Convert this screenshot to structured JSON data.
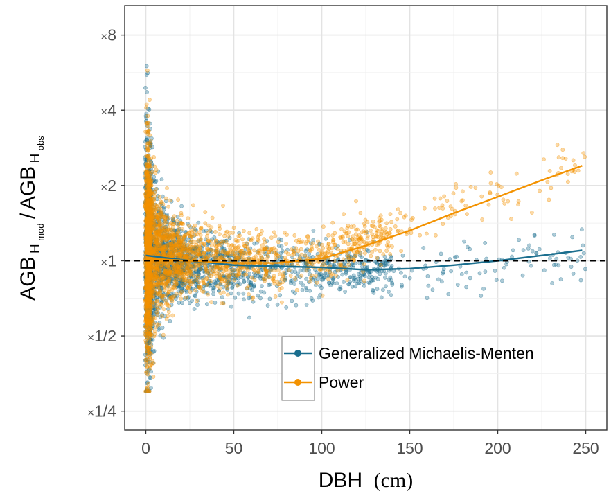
{
  "chart_data": {
    "type": "scatter",
    "x_axis": {
      "label": "DBH",
      "unit": "(cm)",
      "range": [
        -12,
        262
      ],
      "ticks": [
        0,
        50,
        100,
        150,
        200,
        250
      ],
      "tick_labels": [
        "0",
        "50",
        "100",
        "150",
        "200",
        "250"
      ]
    },
    "y_axis": {
      "scale": "log2",
      "label_main": "AGB",
      "label_sub_num": "H",
      "label_subsub_num": "mod",
      "label_sep": "/",
      "label_main2": "AGB",
      "label_sub_den": "H",
      "label_subsub_den": "obs",
      "range": [
        0.21,
        10.5
      ],
      "ticks": [
        0.25,
        0.5,
        1,
        2,
        4,
        8
      ],
      "tick_labels": [
        {
          "prefix": "×",
          "text": "1/4"
        },
        {
          "prefix": "×",
          "text": "1/2"
        },
        {
          "prefix": "×",
          "text": "1"
        },
        {
          "prefix": "×",
          "text": "2"
        },
        {
          "prefix": "×",
          "text": "4"
        },
        {
          "prefix": "×",
          "text": "8"
        }
      ]
    },
    "reference_line": {
      "y": 1,
      "style": "dashed",
      "color": "#000000"
    },
    "grid": true,
    "legend": {
      "placement": "bottom-right"
    },
    "series": [
      {
        "name": "Generalized Michaelis-Menten",
        "color": "#1a6e8e",
        "fit_curve": [
          [
            0,
            1.05
          ],
          [
            25,
            1.0
          ],
          [
            50,
            0.96
          ],
          [
            75,
            0.95
          ],
          [
            100,
            0.94
          ],
          [
            125,
            0.92
          ],
          [
            150,
            0.93
          ],
          [
            175,
            0.96
          ],
          [
            200,
            1.0
          ],
          [
            225,
            1.05
          ],
          [
            248,
            1.1
          ]
        ],
        "scatter_summary": "dense cloud around y=1 for DBH 0-80 widening toward small DBH; sparse points up to DBH 250"
      },
      {
        "name": "Power",
        "color": "#f39200",
        "fit_curve": [
          [
            0,
            1.02
          ],
          [
            25,
            1.0
          ],
          [
            50,
            0.98
          ],
          [
            75,
            0.98
          ],
          [
            100,
            1.02
          ],
          [
            125,
            1.15
          ],
          [
            150,
            1.32
          ],
          [
            175,
            1.55
          ],
          [
            200,
            1.8
          ],
          [
            225,
            2.1
          ],
          [
            248,
            2.4
          ]
        ],
        "scatter_summary": "dense cloud around y=1 for DBH 0-80, reaching y≈7 near DBH 0; sparse points rising above 1 for DBH>100"
      }
    ]
  }
}
